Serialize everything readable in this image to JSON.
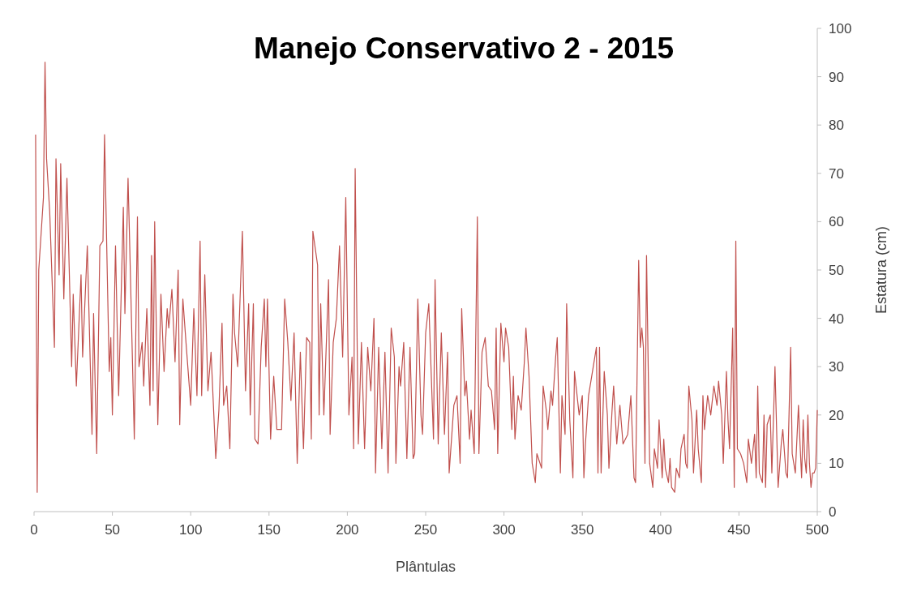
{
  "chart_data": {
    "type": "line",
    "title": "Manejo Conservativo 2 - 2015",
    "xlabel": "Plântulas",
    "ylabel": "Estatura (cm)",
    "xlim": [
      0,
      500
    ],
    "xticks": [
      0,
      50,
      100,
      150,
      200,
      250,
      300,
      350,
      400,
      450,
      500
    ],
    "ylim": [
      0,
      100
    ],
    "yticks": [
      0,
      10,
      20,
      30,
      40,
      50,
      60,
      70,
      80,
      90,
      100
    ],
    "grid": false,
    "series": [
      {
        "color": "#c0504d",
        "x": [
          1,
          2,
          3,
          6,
          7,
          8,
          10,
          13,
          14,
          16,
          17,
          19,
          21,
          24,
          25,
          27,
          30,
          31,
          34,
          37,
          38,
          40,
          42,
          44,
          45,
          47,
          48,
          49,
          50,
          52,
          54,
          57,
          58,
          60,
          61,
          64,
          66,
          67,
          69,
          70,
          72,
          74,
          75,
          76,
          77,
          79,
          81,
          83,
          85,
          86,
          88,
          90,
          92,
          93,
          95,
          97,
          100,
          102,
          104,
          106,
          107,
          109,
          111,
          113,
          116,
          118,
          120,
          121,
          123,
          125,
          127,
          128,
          130,
          133,
          135,
          137,
          138,
          140,
          141,
          143,
          145,
          147,
          148,
          149,
          151,
          153,
          155,
          158,
          160,
          162,
          164,
          166,
          168,
          170,
          172,
          174,
          176,
          177,
          178,
          181,
          182,
          183,
          185,
          188,
          189,
          191,
          193,
          195,
          197,
          199,
          201,
          203,
          204,
          205,
          207,
          209,
          211,
          213,
          215,
          217,
          218,
          220,
          222,
          224,
          226,
          228,
          230,
          231,
          233,
          234,
          236,
          238,
          240,
          242,
          243,
          245,
          247,
          248,
          250,
          252,
          255,
          256,
          258,
          260,
          262,
          264,
          265,
          268,
          270,
          272,
          273,
          275,
          276,
          278,
          279,
          281,
          283,
          284,
          286,
          288,
          290,
          292,
          294,
          295,
          296,
          298,
          300,
          301,
          303,
          305,
          306,
          307,
          309,
          311,
          313,
          314,
          316,
          318,
          320,
          321,
          322,
          324,
          325,
          327,
          328,
          330,
          331,
          333,
          334,
          336,
          337,
          339,
          340,
          342,
          344,
          345,
          348,
          350,
          351,
          352,
          354,
          357,
          359,
          360,
          361,
          362,
          364,
          366,
          367,
          369,
          370,
          372,
          374,
          376,
          379,
          381,
          383,
          384,
          386,
          387,
          388,
          389,
          390,
          391,
          393,
          395,
          396,
          398,
          399,
          401,
          402,
          403,
          405,
          406,
          407,
          409,
          410,
          412,
          413,
          415,
          416,
          417,
          418,
          420,
          421,
          423,
          424,
          426,
          427,
          428,
          430,
          432,
          434,
          436,
          437,
          439,
          440,
          442,
          443,
          444,
          446,
          447,
          448,
          449,
          451,
          453,
          455,
          456,
          458,
          460,
          461,
          462,
          463,
          465,
          466,
          467,
          468,
          470,
          471,
          473,
          475,
          477,
          478,
          480,
          481,
          483,
          484,
          486,
          488,
          489,
          490,
          491,
          492,
          493,
          494,
          495,
          496,
          497,
          498,
          499,
          500
        ],
        "values": [
          78,
          4,
          50,
          65,
          93,
          73,
          62,
          34,
          73,
          49,
          72,
          44,
          69,
          30,
          45,
          26,
          49,
          32,
          55,
          16,
          41,
          12,
          55,
          56,
          78,
          45,
          29,
          36,
          20,
          55,
          24,
          63,
          41,
          69,
          56,
          15,
          61,
          30,
          35,
          26,
          42,
          22,
          53,
          25,
          60,
          18,
          45,
          29,
          42,
          38,
          46,
          31,
          50,
          18,
          44,
          35,
          22,
          42,
          24,
          56,
          24,
          49,
          25,
          33,
          11,
          21,
          39,
          22,
          26,
          13,
          45,
          37,
          30,
          58,
          25,
          43,
          20,
          43,
          15,
          14,
          34,
          44,
          30,
          44,
          15,
          28,
          17,
          17,
          44,
          35,
          23,
          37,
          10,
          33,
          13,
          36,
          35,
          15,
          58,
          51,
          20,
          43,
          20,
          48,
          16,
          35,
          40,
          55,
          32,
          65,
          20,
          32,
          13,
          71,
          14,
          35,
          13,
          34,
          25,
          40,
          8,
          34,
          13,
          33,
          8,
          38,
          32,
          10,
          30,
          26,
          35,
          11,
          34,
          11,
          12,
          44,
          20,
          16,
          37,
          43,
          15,
          48,
          14,
          37,
          16,
          33,
          8,
          22,
          24,
          10,
          42,
          24,
          27,
          15,
          21,
          12,
          61,
          12,
          33,
          36,
          26,
          25,
          17,
          38,
          12,
          39,
          31,
          38,
          34,
          17,
          28,
          15,
          24,
          21,
          31,
          38,
          28,
          10,
          6,
          12,
          11,
          9,
          26,
          21,
          17,
          25,
          22,
          32,
          36,
          8,
          24,
          16,
          43,
          19,
          7,
          29,
          20,
          24,
          7,
          14,
          24,
          30,
          34,
          8,
          34,
          8,
          29,
          20,
          9,
          21,
          26,
          14,
          22,
          14,
          16,
          24,
          7,
          6,
          52,
          34,
          38,
          34,
          10,
          53,
          10,
          5,
          13,
          9,
          19,
          7,
          15,
          9,
          6,
          11,
          5,
          4,
          9,
          7,
          13,
          16,
          10,
          9,
          26,
          19,
          8,
          21,
          13,
          6,
          24,
          17,
          24,
          20,
          26,
          22,
          27,
          20,
          10,
          29,
          19,
          13,
          38,
          5,
          56,
          13,
          12,
          10,
          6,
          15,
          10,
          16,
          7,
          26,
          8,
          6,
          20,
          5,
          18,
          20,
          8,
          30,
          5,
          14,
          17,
          8,
          7,
          34,
          12,
          8,
          22,
          14,
          7,
          19,
          11,
          8,
          20,
          10,
          5,
          8,
          8,
          9,
          21
        ]
      }
    ]
  }
}
